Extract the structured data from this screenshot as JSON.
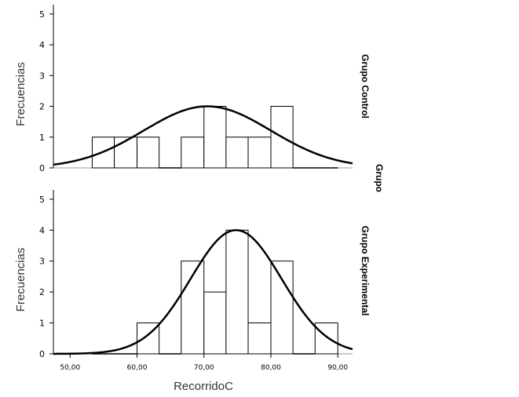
{
  "chart_data": {
    "type": "bar",
    "title": "",
    "xlabel": "RecorridoC",
    "ylabel": "Frecuencias",
    "facet_label": "Grupo",
    "xlim": [
      47.5,
      92.2
    ],
    "ylim": [
      0,
      5.2
    ],
    "x_ticks": [
      {
        "value": 50,
        "label": "50,00"
      },
      {
        "value": 60,
        "label": "60,00"
      },
      {
        "value": 70,
        "label": "70,00"
      },
      {
        "value": 80,
        "label": "80,00"
      },
      {
        "value": 90,
        "label": "90,00"
      }
    ],
    "y_ticks": [
      {
        "value": 0,
        "label": "0"
      },
      {
        "value": 1,
        "label": "1"
      },
      {
        "value": 2,
        "label": "2"
      },
      {
        "value": 3,
        "label": "3"
      },
      {
        "value": 4,
        "label": "4"
      },
      {
        "value": 5,
        "label": "5"
      }
    ],
    "bin_edges": [
      53.3,
      56.6,
      60.0,
      63.3,
      66.6,
      70.0,
      73.3,
      76.6,
      80.0,
      83.3,
      86.6,
      90.0
    ],
    "panels": [
      {
        "name": "Grupo Control",
        "counts": [
          1,
          1,
          1,
          0,
          1,
          2,
          1,
          1,
          2,
          0,
          0
        ],
        "normal_curve": {
          "peak": 2.0,
          "mean": 70.5,
          "sd": 9.5
        }
      },
      {
        "name": "Grupo Experimental",
        "counts": [
          0,
          0,
          1,
          0,
          3,
          2,
          4,
          1,
          3,
          0,
          1
        ],
        "normal_curve": {
          "peak": 4.0,
          "mean": 74.8,
          "sd": 6.8
        }
      }
    ]
  }
}
